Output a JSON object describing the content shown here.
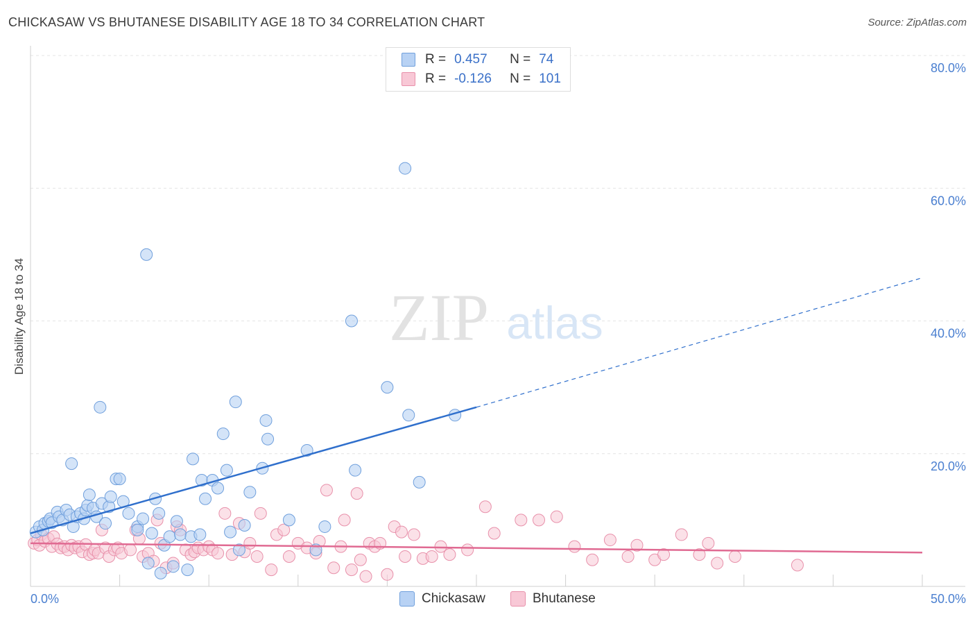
{
  "header": {
    "title": "CHICKASAW VS BHUTANESE DISABILITY AGE 18 TO 34 CORRELATION CHART",
    "source": "Source: ZipAtlas.com"
  },
  "watermark": {
    "zip": "ZIP",
    "atlas": "atlas"
  },
  "legend": {
    "rows": [
      {
        "r_label": "R =",
        "r_value": "0.457",
        "n_label": "N =",
        "n_value": "74",
        "color": "#7aaae8"
      },
      {
        "r_label": "R =",
        "r_value": "-0.126",
        "n_label": "N =",
        "n_value": "101",
        "color": "#f0a0b8"
      }
    ]
  },
  "bottom_legend": {
    "chickasaw": "Chickasaw",
    "bhutanese": "Bhutanese"
  },
  "colors": {
    "chickasaw_fill": "#b8d2f4",
    "chickasaw_stroke": "#6f9fdc",
    "chickasaw_line": "#2f6fcc",
    "bhutanese_fill": "#f8c8d6",
    "bhutanese_stroke": "#e890aa",
    "bhutanese_line": "#e06a92",
    "axis_label": "#4a7fd0"
  },
  "chart_data": {
    "type": "scatter",
    "title": "CHICKASAW VS BHUTANESE DISABILITY AGE 18 TO 34 CORRELATION CHART",
    "xlabel": "",
    "ylabel": "Disability Age 18 to 34",
    "xlim": [
      0,
      50
    ],
    "ylim": [
      0,
      80
    ],
    "x_tick_labels": [
      "0.0%",
      "50.0%"
    ],
    "y_ticks": [
      20,
      40,
      60,
      80
    ],
    "y_tick_labels": [
      "20.0%",
      "40.0%",
      "60.0%",
      "80.0%"
    ],
    "grid": true,
    "series": [
      {
        "name": "Chickasaw",
        "R": 0.457,
        "N": 74,
        "trend": {
          "x0": 0,
          "y0": 8.0,
          "x1": 25,
          "y1": 27.0,
          "dash_to_x": 50,
          "dash_to_y": 46.5
        },
        "points": [
          [
            0.3,
            8.2
          ],
          [
            0.5,
            9.0
          ],
          [
            0.7,
            8.5
          ],
          [
            0.8,
            9.5
          ],
          [
            1.0,
            9.8
          ],
          [
            1.1,
            10.2
          ],
          [
            1.2,
            9.6
          ],
          [
            1.5,
            11.2
          ],
          [
            1.6,
            10.5
          ],
          [
            1.8,
            10.0
          ],
          [
            2.0,
            11.5
          ],
          [
            2.2,
            10.8
          ],
          [
            2.3,
            18.5
          ],
          [
            2.4,
            9.0
          ],
          [
            2.6,
            10.5
          ],
          [
            2.8,
            11.0
          ],
          [
            3.0,
            10.2
          ],
          [
            3.1,
            11.5
          ],
          [
            3.2,
            12.2
          ],
          [
            3.3,
            13.8
          ],
          [
            3.5,
            11.8
          ],
          [
            3.7,
            10.5
          ],
          [
            3.9,
            27.0
          ],
          [
            4.0,
            12.5
          ],
          [
            4.2,
            9.5
          ],
          [
            4.4,
            12.0
          ],
          [
            4.5,
            13.5
          ],
          [
            4.8,
            16.2
          ],
          [
            5.0,
            16.2
          ],
          [
            5.2,
            12.8
          ],
          [
            5.5,
            11.0
          ],
          [
            6.0,
            9.0
          ],
          [
            6.3,
            10.2
          ],
          [
            6.5,
            50.0
          ],
          [
            6.6,
            3.5
          ],
          [
            6.8,
            8.0
          ],
          [
            7.0,
            13.2
          ],
          [
            7.2,
            11.0
          ],
          [
            7.3,
            2.0
          ],
          [
            7.5,
            6.2
          ],
          [
            7.8,
            7.5
          ],
          [
            8.0,
            3.0
          ],
          [
            8.2,
            9.8
          ],
          [
            8.4,
            7.8
          ],
          [
            8.8,
            2.5
          ],
          [
            9.0,
            7.5
          ],
          [
            9.1,
            19.2
          ],
          [
            9.5,
            7.8
          ],
          [
            9.6,
            16.0
          ],
          [
            9.8,
            13.2
          ],
          [
            10.2,
            16.0
          ],
          [
            10.5,
            14.8
          ],
          [
            10.8,
            23.0
          ],
          [
            11.0,
            17.5
          ],
          [
            11.2,
            8.2
          ],
          [
            11.5,
            27.8
          ],
          [
            11.7,
            5.5
          ],
          [
            12.0,
            9.2
          ],
          [
            12.3,
            14.2
          ],
          [
            13.0,
            17.8
          ],
          [
            13.2,
            25.0
          ],
          [
            13.3,
            22.2
          ],
          [
            14.5,
            10.0
          ],
          [
            15.5,
            20.5
          ],
          [
            16.0,
            5.5
          ],
          [
            16.5,
            9.0
          ],
          [
            18.0,
            40.0
          ],
          [
            18.2,
            17.5
          ],
          [
            20.0,
            30.0
          ],
          [
            21.0,
            63.0
          ],
          [
            21.2,
            25.8
          ],
          [
            21.8,
            15.7
          ],
          [
            23.8,
            25.8
          ],
          [
            6.0,
            8.5
          ]
        ]
      },
      {
        "name": "Bhutanese",
        "R": -0.126,
        "N": 101,
        "trend": {
          "x0": 0,
          "y0": 6.5,
          "x1": 50,
          "y1": 5.1
        },
        "points": [
          [
            0.2,
            6.5
          ],
          [
            0.4,
            7.0
          ],
          [
            0.5,
            6.2
          ],
          [
            0.6,
            7.8
          ],
          [
            0.8,
            6.8
          ],
          [
            1.0,
            7.2
          ],
          [
            1.2,
            6.0
          ],
          [
            1.3,
            7.5
          ],
          [
            1.5,
            6.4
          ],
          [
            1.7,
            5.8
          ],
          [
            1.9,
            6.0
          ],
          [
            2.1,
            5.5
          ],
          [
            2.3,
            6.2
          ],
          [
            2.5,
            5.8
          ],
          [
            2.7,
            6.0
          ],
          [
            2.9,
            5.2
          ],
          [
            3.1,
            6.3
          ],
          [
            3.3,
            4.8
          ],
          [
            3.5,
            5.0
          ],
          [
            3.6,
            5.5
          ],
          [
            3.8,
            5.0
          ],
          [
            4.0,
            8.5
          ],
          [
            4.2,
            5.8
          ],
          [
            4.4,
            4.5
          ],
          [
            4.7,
            5.5
          ],
          [
            4.9,
            5.8
          ],
          [
            5.1,
            5.0
          ],
          [
            5.6,
            5.5
          ],
          [
            5.9,
            8.5
          ],
          [
            6.1,
            7.2
          ],
          [
            6.3,
            4.5
          ],
          [
            6.6,
            5.0
          ],
          [
            6.9,
            3.8
          ],
          [
            7.1,
            10.0
          ],
          [
            7.3,
            6.5
          ],
          [
            7.6,
            2.8
          ],
          [
            8.0,
            3.5
          ],
          [
            8.2,
            9.0
          ],
          [
            8.4,
            8.5
          ],
          [
            8.7,
            5.5
          ],
          [
            9.0,
            4.8
          ],
          [
            9.2,
            5.2
          ],
          [
            9.4,
            5.8
          ],
          [
            9.7,
            5.5
          ],
          [
            10.0,
            6.0
          ],
          [
            10.2,
            5.5
          ],
          [
            10.5,
            5.0
          ],
          [
            10.9,
            11.0
          ],
          [
            11.3,
            4.8
          ],
          [
            11.7,
            9.5
          ],
          [
            12.0,
            5.2
          ],
          [
            12.3,
            6.5
          ],
          [
            12.7,
            4.5
          ],
          [
            12.9,
            11.0
          ],
          [
            13.5,
            2.5
          ],
          [
            13.8,
            7.8
          ],
          [
            14.2,
            8.5
          ],
          [
            14.5,
            4.5
          ],
          [
            15.0,
            6.5
          ],
          [
            15.5,
            5.8
          ],
          [
            16.0,
            5.0
          ],
          [
            16.2,
            6.8
          ],
          [
            16.6,
            14.5
          ],
          [
            17.0,
            2.8
          ],
          [
            17.4,
            6.0
          ],
          [
            17.6,
            10.0
          ],
          [
            18.0,
            2.5
          ],
          [
            18.3,
            14.0
          ],
          [
            18.5,
            4.0
          ],
          [
            18.8,
            1.5
          ],
          [
            19.0,
            6.5
          ],
          [
            19.3,
            6.0
          ],
          [
            19.6,
            6.5
          ],
          [
            20.0,
            1.8
          ],
          [
            20.4,
            9.0
          ],
          [
            20.8,
            8.2
          ],
          [
            21.0,
            4.5
          ],
          [
            21.5,
            7.8
          ],
          [
            22.0,
            4.2
          ],
          [
            22.5,
            4.5
          ],
          [
            23.0,
            6.0
          ],
          [
            23.5,
            4.8
          ],
          [
            24.5,
            5.5
          ],
          [
            25.5,
            12.0
          ],
          [
            26.0,
            8.0
          ],
          [
            27.5,
            10.0
          ],
          [
            28.5,
            10.0
          ],
          [
            29.5,
            10.5
          ],
          [
            30.5,
            6.0
          ],
          [
            31.5,
            4.0
          ],
          [
            32.5,
            7.0
          ],
          [
            33.5,
            4.5
          ],
          [
            34.0,
            6.2
          ],
          [
            35.0,
            4.0
          ],
          [
            35.5,
            4.8
          ],
          [
            36.5,
            7.8
          ],
          [
            37.5,
            4.8
          ],
          [
            38.0,
            6.5
          ],
          [
            38.5,
            3.5
          ],
          [
            39.5,
            4.5
          ],
          [
            43.0,
            3.2
          ]
        ]
      }
    ]
  }
}
